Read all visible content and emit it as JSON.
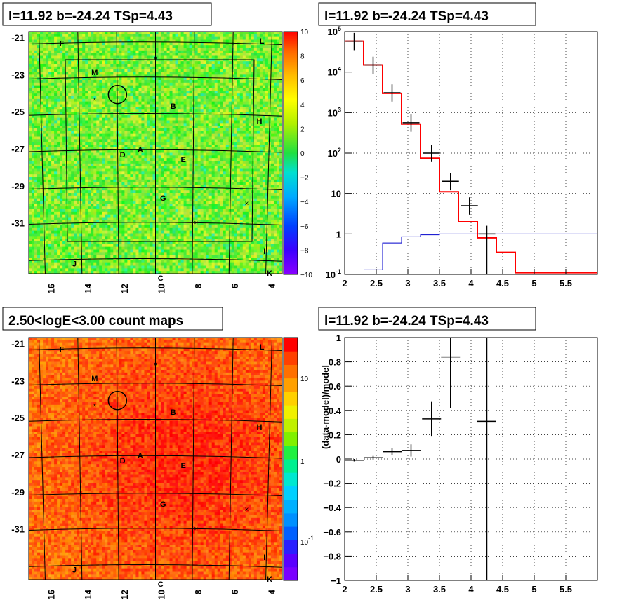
{
  "chart_data": [
    {
      "type": "heatmap",
      "title": "l=11.92 b=-24.24 TSp=4.43",
      "xaxis_ticks": [
        "16",
        "14",
        "12",
        "10",
        "8",
        "6",
        "4"
      ],
      "yaxis_ticks": [
        "-21",
        "-23",
        "-25",
        "-27",
        "-29",
        "-31"
      ],
      "colorbar_ticks": [
        "10",
        "8",
        "6",
        "4",
        "2",
        "0",
        "−2",
        "−4",
        "−6",
        "−8",
        "−10"
      ],
      "zlim": [
        -10,
        10
      ],
      "source_labels": [
        "F",
        "L",
        "M",
        "B",
        "H",
        "D",
        "A",
        "E",
        "G",
        "J",
        "I",
        "K",
        "C"
      ]
    },
    {
      "type": "line",
      "title": "l=11.92 b=-24.24 TSp=4.43",
      "xlim": [
        2,
        6
      ],
      "ylog": true,
      "yticks": [
        "10<sup>-1</sup>",
        "1",
        "10",
        "10<sup>2</sup>",
        "10<sup>3</sup>",
        "10<sup>4</sup>",
        "10<sup>5</sup>"
      ],
      "xticks": [
        "2",
        "2.5",
        "3",
        "3.5",
        "4",
        "4.5",
        "5",
        "5.5"
      ],
      "series": [
        {
          "role": "data",
          "color": "#000000",
          "points": [
            {
              "x": 2.15,
              "y": 58000
            },
            {
              "x": 2.45,
              "y": 15000
            },
            {
              "x": 2.75,
              "y": 3100
            },
            {
              "x": 3.05,
              "y": 560
            },
            {
              "x": 3.375,
              "y": 100
            },
            {
              "x": 3.675,
              "y": 20
            },
            {
              "x": 3.975,
              "y": 5
            },
            {
              "x": 4.25,
              "y": 1
            }
          ]
        },
        {
          "role": "model",
          "color": "#ff0000",
          "steps": [
            {
              "x0": 2.0,
              "x1": 2.3,
              "y": 58000
            },
            {
              "x0": 2.3,
              "x1": 2.6,
              "y": 15000
            },
            {
              "x0": 2.6,
              "x1": 2.9,
              "y": 3000
            },
            {
              "x0": 2.9,
              "x1": 3.2,
              "y": 520
            },
            {
              "x0": 3.2,
              "x1": 3.5,
              "y": 75
            },
            {
              "x0": 3.5,
              "x1": 3.8,
              "y": 11
            },
            {
              "x0": 3.8,
              "x1": 4.1,
              "y": 2
            },
            {
              "x0": 4.1,
              "x1": 4.4,
              "y": 0.8
            },
            {
              "x0": 4.4,
              "x1": 4.7,
              "y": 0.35
            },
            {
              "x0": 4.7,
              "x1": 6.0,
              "y": 0.11
            }
          ]
        },
        {
          "role": "background",
          "color": "#0000cc",
          "steps": [
            {
              "x0": 2.3,
              "x1": 2.6,
              "y": 0.13
            },
            {
              "x0": 2.6,
              "x1": 2.9,
              "y": 0.6
            },
            {
              "x0": 2.9,
              "x1": 3.2,
              "y": 0.85
            },
            {
              "x0": 3.2,
              "x1": 3.5,
              "y": 0.95
            },
            {
              "x0": 3.5,
              "x1": 6.0,
              "y": 1.0
            }
          ]
        }
      ]
    },
    {
      "type": "heatmap",
      "title": "2.50<logE<3.00 count maps",
      "xaxis_ticks": [
        "16",
        "14",
        "12",
        "10",
        "8",
        "6",
        "4"
      ],
      "yaxis_ticks": [
        "-21",
        "-23",
        "-25",
        "-27",
        "-29",
        "-31"
      ],
      "colorbar_log": true,
      "colorbar_ticks": [
        "10",
        "1",
        "10<sup>-1</sup>"
      ],
      "source_labels": [
        "F",
        "L",
        "M",
        "B",
        "H",
        "D",
        "A",
        "E",
        "G",
        "J",
        "I",
        "K",
        "C"
      ]
    },
    {
      "type": "scatter",
      "title": "l=11.92 b=-24.24 TSp=4.43",
      "ylabel": "(data-model)/model",
      "xlim": [
        2,
        6
      ],
      "ylim": [
        -1,
        1
      ],
      "xticks": [
        "2",
        "2.5",
        "3",
        "3.5",
        "4",
        "4.5",
        "5",
        "5.5"
      ],
      "yticks": [
        "−1",
        "−0.8",
        "−0.6",
        "−0.4",
        "−0.2",
        "0",
        "0.2",
        "0.4",
        "0.6",
        "0.8",
        "1"
      ],
      "points": [
        {
          "x": 2.15,
          "y": -0.01,
          "xerr": 0.15,
          "yerr": 0.01
        },
        {
          "x": 2.45,
          "y": 0.01,
          "xerr": 0.15,
          "yerr": 0.015
        },
        {
          "x": 2.75,
          "y": 0.06,
          "xerr": 0.15,
          "yerr": 0.03
        },
        {
          "x": 3.05,
          "y": 0.07,
          "xerr": 0.15,
          "yerr": 0.05
        },
        {
          "x": 3.375,
          "y": 0.33,
          "xerr": 0.15,
          "yerr": 0.14
        },
        {
          "x": 3.675,
          "y": 0.84,
          "xerr": 0.15,
          "yerr": 0.42
        },
        {
          "x": 4.25,
          "y": 0.31,
          "xerr": 0.15,
          "yerr": 1.5
        }
      ]
    }
  ]
}
